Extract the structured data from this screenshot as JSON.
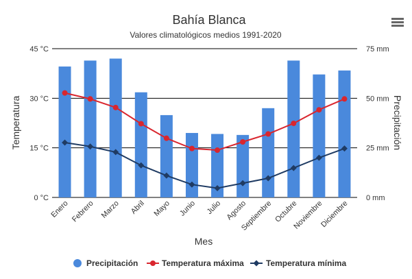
{
  "chart_data": {
    "type": "bar",
    "title": "Bahía Blanca",
    "subtitle": "Valores climatológicos medios 1991-2020",
    "xlabel": "Mes",
    "ylabel_left": "Temperatura",
    "ylabel_right": "Precipitación",
    "categories": [
      "Enero",
      "Febrero",
      "Marzo",
      "Abril",
      "Mayo",
      "Junio",
      "Julio",
      "Agosto",
      "Septiembre",
      "Octubre",
      "Noviembre",
      "Diciembre"
    ],
    "left_axis": {
      "min": 0,
      "max": 45,
      "ticks": [
        "0 °C",
        "15 °C",
        "30 °C",
        "45 °C"
      ],
      "tick_values": [
        0,
        15,
        30,
        45
      ]
    },
    "right_axis": {
      "min": 0,
      "max": 75,
      "ticks": [
        "0 mm",
        "25 mm",
        "50 mm",
        "75 mm"
      ],
      "tick_values": [
        0,
        25,
        50,
        75
      ]
    },
    "grid": true,
    "legend_position": "bottom",
    "series": [
      {
        "name": "Precipitación",
        "type": "bar",
        "axis": "right",
        "color": "#4a89dc",
        "values": [
          66.0,
          69.0,
          70.0,
          53.0,
          41.5,
          32.5,
          32.0,
          31.5,
          45.0,
          69.0,
          62.0,
          64.0
        ]
      },
      {
        "name": "Temperatura máxima",
        "type": "line",
        "axis": "left",
        "color": "#d9262e",
        "marker": "circle",
        "values": [
          31.6,
          29.8,
          27.2,
          22.3,
          17.9,
          14.8,
          14.3,
          16.8,
          19.2,
          22.4,
          26.5,
          29.8
        ]
      },
      {
        "name": "Temperatura mínima",
        "type": "line",
        "axis": "left",
        "color": "#1f3b63",
        "marker": "diamond",
        "values": [
          16.6,
          15.4,
          13.7,
          9.7,
          6.6,
          3.9,
          2.8,
          4.3,
          5.8,
          8.9,
          12.0,
          14.8
        ]
      }
    ]
  },
  "menu_icon": "hamburger-menu-icon"
}
